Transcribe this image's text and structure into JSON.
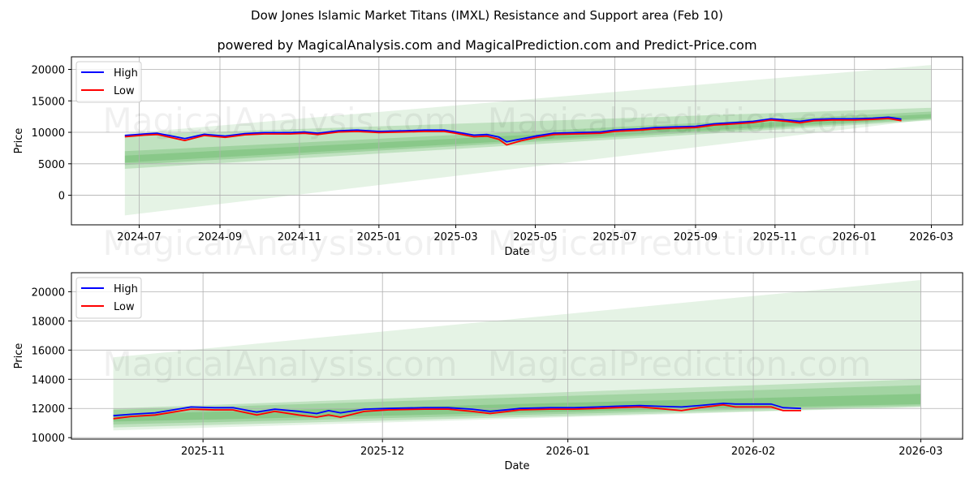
{
  "title": "Dow Jones Islamic Market Titans (IMXL) Resistance and Support area (Feb 10)",
  "subtitle": "powered by MagicalAnalysis.com and MagicalPrediction.com and Predict-Price.com",
  "watermarks": [
    "MagicalAnalysis.com",
    "MagicalPrediction.com"
  ],
  "colors": {
    "high": "#0000ff",
    "low": "#ff0000",
    "band": "#2ca02c",
    "grid": "#b0b0b0"
  },
  "chart_data": [
    {
      "type": "line",
      "xlabel": "Date",
      "ylabel": "Price",
      "xlim": [
        "2024-05-10",
        "2026-03-25"
      ],
      "ylim": [
        -4700,
        22000
      ],
      "grid": true,
      "legend": {
        "placement": "top-left",
        "entries": [
          "High",
          "Low"
        ]
      },
      "xticks": [
        "2024-07",
        "2024-09",
        "2024-11",
        "2025-01",
        "2025-03",
        "2025-05",
        "2025-07",
        "2025-09",
        "2025-11",
        "2026-01",
        "2026-03"
      ],
      "yticks": [
        0,
        5000,
        10000,
        15000,
        20000
      ],
      "bands": [
        {
          "start": "2024-06-20",
          "end": "2026-03-01",
          "lower": [
            -3200,
            12100
          ],
          "upper": [
            9800,
            20700
          ],
          "opacity": 0.12
        },
        {
          "start": "2024-06-20",
          "end": "2026-03-01",
          "lower": [
            4200,
            11900
          ],
          "upper": [
            9600,
            13900
          ],
          "opacity": 0.2
        },
        {
          "start": "2024-06-20",
          "end": "2026-03-01",
          "lower": [
            4800,
            12100
          ],
          "upper": [
            7000,
            13300
          ],
          "opacity": 0.22
        },
        {
          "start": "2024-06-20",
          "end": "2026-03-01",
          "lower": [
            5200,
            12300
          ],
          "upper": [
            6300,
            12900
          ],
          "opacity": 0.2
        }
      ],
      "series": [
        {
          "name": "High",
          "x": [
            "2024-06-20",
            "2024-07-05",
            "2024-07-15",
            "2024-07-25",
            "2024-08-05",
            "2024-08-20",
            "2024-09-05",
            "2024-09-20",
            "2024-10-05",
            "2024-10-25",
            "2024-11-05",
            "2024-11-15",
            "2024-12-01",
            "2024-12-15",
            "2025-01-01",
            "2025-01-20",
            "2025-02-05",
            "2025-02-20",
            "2025-03-01",
            "2025-03-15",
            "2025-03-25",
            "2025-04-03",
            "2025-04-09",
            "2025-04-20",
            "2025-05-01",
            "2025-05-15",
            "2025-06-01",
            "2025-06-20",
            "2025-07-01",
            "2025-07-20",
            "2025-08-01",
            "2025-08-15",
            "2025-09-01",
            "2025-09-15",
            "2025-10-01",
            "2025-10-15",
            "2025-10-29",
            "2025-11-10",
            "2025-11-20",
            "2025-12-01",
            "2025-12-15",
            "2026-01-01",
            "2026-01-15",
            "2026-01-27",
            "2026-02-06"
          ],
          "values": [
            9500,
            9750,
            9850,
            9450,
            9000,
            9700,
            9400,
            9800,
            9950,
            9950,
            10050,
            9850,
            10250,
            10350,
            10150,
            10250,
            10350,
            10350,
            10050,
            9550,
            9650,
            9250,
            8500,
            8950,
            9400,
            9850,
            9950,
            10050,
            10350,
            10550,
            10750,
            10850,
            10950,
            11350,
            11550,
            11750,
            12150,
            11950,
            11750,
            12050,
            12150,
            12150,
            12250,
            12400,
            12100
          ]
        },
        {
          "name": "Low",
          "x": [
            "2024-06-20",
            "2024-07-05",
            "2024-07-15",
            "2024-07-25",
            "2024-08-05",
            "2024-08-20",
            "2024-09-05",
            "2024-09-20",
            "2024-10-05",
            "2024-10-25",
            "2024-11-05",
            "2024-11-15",
            "2024-12-01",
            "2024-12-15",
            "2025-01-01",
            "2025-01-20",
            "2025-02-05",
            "2025-02-20",
            "2025-03-01",
            "2025-03-15",
            "2025-03-25",
            "2025-04-03",
            "2025-04-09",
            "2025-04-20",
            "2025-05-01",
            "2025-05-15",
            "2025-06-01",
            "2025-06-20",
            "2025-07-01",
            "2025-07-20",
            "2025-08-01",
            "2025-08-15",
            "2025-09-01",
            "2025-09-15",
            "2025-10-01",
            "2025-10-15",
            "2025-10-29",
            "2025-11-10",
            "2025-11-20",
            "2025-12-01",
            "2025-12-15",
            "2026-01-01",
            "2026-01-15",
            "2026-01-27",
            "2026-02-06"
          ],
          "values": [
            9300,
            9550,
            9650,
            9200,
            8700,
            9500,
            9200,
            9600,
            9750,
            9750,
            9850,
            9650,
            10050,
            10150,
            9950,
            10050,
            10150,
            10150,
            9850,
            9300,
            9400,
            8900,
            8000,
            8650,
            9150,
            9650,
            9750,
            9850,
            10150,
            10350,
            10550,
            10650,
            10750,
            11150,
            11350,
            11550,
            11950,
            11750,
            11500,
            11850,
            11950,
            11950,
            12050,
            12200,
            11850
          ]
        }
      ]
    },
    {
      "type": "line",
      "xlabel": "Date",
      "ylabel": "Price",
      "xlim": [
        "2025-10-10",
        "2026-03-08"
      ],
      "ylim": [
        9900,
        21300
      ],
      "grid": true,
      "legend": {
        "placement": "top-left",
        "entries": [
          "High",
          "Low"
        ]
      },
      "xticks": [
        "2025-11",
        "2025-12",
        "2026-01",
        "2026-02",
        "2026-03"
      ],
      "yticks": [
        10000,
        12000,
        14000,
        16000,
        18000,
        20000
      ],
      "bands": [
        {
          "start": "2025-10-17",
          "end": "2026-03-01",
          "lower": [
            10500,
            12100
          ],
          "upper": [
            15500,
            20800
          ],
          "opacity": 0.12
        },
        {
          "start": "2025-10-17",
          "end": "2026-03-01",
          "lower": [
            10700,
            12100
          ],
          "upper": [
            12000,
            14000
          ],
          "opacity": 0.2
        },
        {
          "start": "2025-10-17",
          "end": "2026-03-01",
          "lower": [
            10900,
            12200
          ],
          "upper": [
            11900,
            13600
          ],
          "opacity": 0.2
        },
        {
          "start": "2025-10-17",
          "end": "2026-03-01",
          "lower": [
            11100,
            12300
          ],
          "upper": [
            11600,
            13000
          ],
          "opacity": 0.22
        }
      ],
      "series": [
        {
          "name": "High",
          "x": [
            "2025-10-17",
            "2025-10-20",
            "2025-10-24",
            "2025-10-27",
            "2025-10-30",
            "2025-11-03",
            "2025-11-06",
            "2025-11-10",
            "2025-11-13",
            "2025-11-17",
            "2025-11-20",
            "2025-11-22",
            "2025-11-24",
            "2025-11-28",
            "2025-12-02",
            "2025-12-08",
            "2025-12-12",
            "2025-12-16",
            "2025-12-19",
            "2025-12-24",
            "2025-12-29",
            "2026-01-02",
            "2026-01-06",
            "2026-01-09",
            "2026-01-13",
            "2026-01-16",
            "2026-01-20",
            "2026-01-23",
            "2026-01-27",
            "2026-01-29",
            "2026-02-04",
            "2026-02-06",
            "2026-02-09"
          ],
          "values": [
            11500,
            11600,
            11700,
            11900,
            12100,
            12050,
            12050,
            11750,
            11950,
            11800,
            11650,
            11850,
            11700,
            11950,
            12000,
            12050,
            12050,
            11950,
            11800,
            12000,
            12050,
            12050,
            12100,
            12150,
            12200,
            12150,
            12100,
            12200,
            12350,
            12300,
            12300,
            12050,
            12000
          ]
        },
        {
          "name": "Low",
          "x": [
            "2025-10-17",
            "2025-10-20",
            "2025-10-24",
            "2025-10-27",
            "2025-10-30",
            "2025-11-03",
            "2025-11-06",
            "2025-11-10",
            "2025-11-13",
            "2025-11-17",
            "2025-11-20",
            "2025-11-22",
            "2025-11-24",
            "2025-11-28",
            "2025-12-02",
            "2025-12-08",
            "2025-12-12",
            "2025-12-16",
            "2025-12-19",
            "2025-12-24",
            "2025-12-29",
            "2026-01-02",
            "2026-01-06",
            "2026-01-09",
            "2026-01-13",
            "2026-01-16",
            "2026-01-20",
            "2026-01-23",
            "2026-01-27",
            "2026-01-29",
            "2026-02-04",
            "2026-02-06",
            "2026-02-09"
          ],
          "values": [
            11300,
            11450,
            11550,
            11750,
            11950,
            11900,
            11900,
            11550,
            11800,
            11550,
            11400,
            11550,
            11400,
            11800,
            11900,
            11950,
            11950,
            11800,
            11650,
            11900,
            11950,
            11950,
            12000,
            12050,
            12100,
            12000,
            11850,
            12050,
            12250,
            12100,
            12100,
            11850,
            11850
          ]
        }
      ]
    }
  ]
}
